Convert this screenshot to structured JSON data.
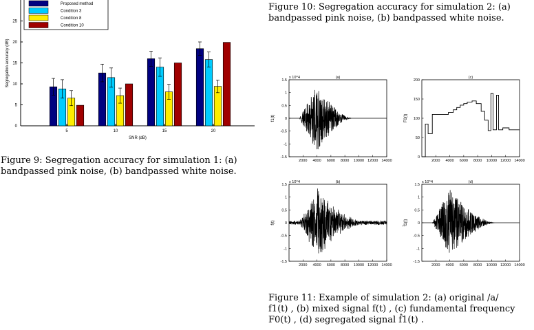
{
  "captions": {
    "fig10": "Figure 10:  Segregation accuracy for simulation 2: (a) bandpassed pink noise, (b) bandpassed white noise.",
    "fig9": "Figure 9:  Segregation accuracy for simulation 1: (a) bandpassed pink noise, (b) bandpassed white noise.",
    "fig11_line1": "Figure 11:  Example of simulation 2:  (a) original /a/",
    "fig11_line2": "f1(t) , (b) mixed signal f(t) , (c) fundamental frequency",
    "fig11_line3": "F0(t) , (d) segregated signal f̂1(t) ."
  },
  "chart_data": [
    {
      "type": "bar",
      "title": "",
      "xlabel": "SNR (dB)",
      "ylabel": "Segregation accuracy (dB)",
      "categories": [
        "5",
        "10",
        "15",
        "20"
      ],
      "ylim": [
        0,
        30
      ],
      "yticks": [
        "0",
        "5",
        "10",
        "15",
        "20",
        "25"
      ],
      "legend_position": "top-left",
      "series": [
        {
          "name": "Proposed method",
          "color": "#000080",
          "values": [
            9.3,
            12.6,
            16.0,
            18.4
          ],
          "errors": [
            2.0,
            2.1,
            1.8,
            1.6
          ]
        },
        {
          "name": "Condition 3",
          "color": "#00ccff",
          "values": [
            8.8,
            11.5,
            14.0,
            15.8
          ],
          "errors": [
            2.2,
            2.3,
            2.2,
            1.8
          ]
        },
        {
          "name": "Condition 8",
          "color": "#ffee00",
          "values": [
            6.6,
            7.2,
            8.1,
            9.4
          ],
          "errors": [
            1.8,
            1.8,
            1.8,
            1.5
          ]
        },
        {
          "name": "Condition 10",
          "color": "#a00000",
          "values": [
            4.9,
            10.0,
            15.0,
            19.9
          ],
          "errors": [
            0,
            0,
            0,
            0
          ]
        }
      ]
    },
    {
      "type": "line",
      "title": "(a)",
      "ylabel": "f1(t)",
      "scale_label": "x 10^4",
      "xlim": [
        0,
        14000
      ],
      "ylim": [
        -1.5,
        1.5
      ],
      "xticks": [
        "2000",
        "4000",
        "6000",
        "8000",
        "10000",
        "12000",
        "14000"
      ],
      "yticks": [
        "1.5",
        "1",
        "0.5",
        "0",
        "-0.5",
        "-1",
        "-1.5"
      ],
      "envelope": {
        "start": 1500,
        "peak": 4000,
        "end": 9000,
        "amplitude": 1.3
      }
    },
    {
      "type": "line",
      "title": "(b)",
      "ylabel": "f(t)",
      "scale_label": "x 10^4",
      "xlim": [
        0,
        14000
      ],
      "ylim": [
        -1.5,
        1.5
      ],
      "xticks": [
        "2000",
        "4000",
        "6000",
        "8000",
        "10000",
        "12000",
        "14000"
      ],
      "yticks": [
        "1.5",
        "1",
        "0.5",
        "0",
        "-0.5",
        "-1",
        "-1.5"
      ],
      "envelope": {
        "start": 1500,
        "peak": 4000,
        "end": 10500,
        "amplitude": 1.3
      }
    },
    {
      "type": "line",
      "title": "(c)",
      "ylabel": "F0(t)",
      "xlim": [
        0,
        14000
      ],
      "ylim": [
        0,
        200
      ],
      "xticks": [
        "2000",
        "4000",
        "6000",
        "8000",
        "10000",
        "12000",
        "14000"
      ],
      "yticks": [
        "200",
        "150",
        "100",
        "50",
        "0"
      ],
      "x": [
        0,
        500,
        500,
        900,
        900,
        1500,
        1500,
        3800,
        3800,
        4500,
        4500,
        5000,
        5000,
        5500,
        5500,
        6000,
        6000,
        6500,
        6500,
        7200,
        7200,
        7800,
        7800,
        8500,
        8500,
        9000,
        9000,
        9500,
        9500,
        9900,
        9900,
        10200,
        10200,
        10700,
        10700,
        11000,
        11000,
        11600,
        11600,
        12500,
        12500,
        14000
      ],
      "y": [
        0,
        0,
        85,
        85,
        60,
        60,
        110,
        110,
        115,
        115,
        122,
        122,
        128,
        128,
        134,
        134,
        138,
        138,
        142,
        142,
        145,
        145,
        138,
        138,
        118,
        118,
        95,
        95,
        68,
        68,
        165,
        165,
        70,
        70,
        160,
        160,
        70,
        70,
        75,
        75,
        70,
        70
      ]
    },
    {
      "type": "line",
      "title": "(d)",
      "ylabel": "f̂1(t)",
      "scale_label": "x 10^4",
      "xlim": [
        0,
        14000
      ],
      "ylim": [
        -1.5,
        1.5
      ],
      "xticks": [
        "2000",
        "4000",
        "6000",
        "8000",
        "10000",
        "12000",
        "14000"
      ],
      "yticks": [
        "1.5",
        "1",
        "0.5",
        "0",
        "-0.5",
        "-1",
        "-1.5"
      ],
      "envelope": {
        "start": 1500,
        "peak": 4000,
        "end": 10500,
        "amplitude": 1.3
      }
    }
  ]
}
